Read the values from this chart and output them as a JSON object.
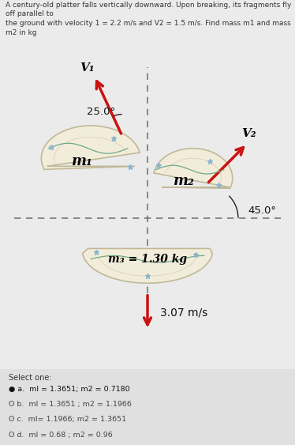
{
  "title": "A century-old platter falls vertically downward. Upon breaking, its fragments fly off parallel to\nthe ground with velocity 1 = 2.2 m/s and V2 = 1.5 m/s. Find mass m1 and mass m2 in kg",
  "bg_color": "#ebebeb",
  "panel_color": "#ffffff",
  "answer_bg": "#e0e0e0",
  "arrow_color": "#cc1111",
  "dashed_line_color": "#777777",
  "platter_color": "#f2edda",
  "platter_edge": "#c0b898",
  "v1_label": "V₁",
  "v2_label": "V₂",
  "m1_label": "m₁",
  "m2_label": "m₂",
  "m3_label": "m₃ = 1.30 kg",
  "speed_label": "3.07 m/s",
  "angle1_label": "25.0°",
  "angle2_label": "45.0°",
  "select_label": "Select one:",
  "options": [
    {
      "text": "● a.  ml = 1.3651; m2 = 0.7180",
      "selected": true
    },
    {
      "text": "O b.  ml = 1.3651 ; m2 = 1.1966",
      "selected": false
    },
    {
      "text": "O c.  ml= 1.1966; m2 = 1.3651",
      "selected": false
    },
    {
      "text": "O d.  ml = 0.68 ; m2 = 0.96",
      "selected": false
    }
  ]
}
